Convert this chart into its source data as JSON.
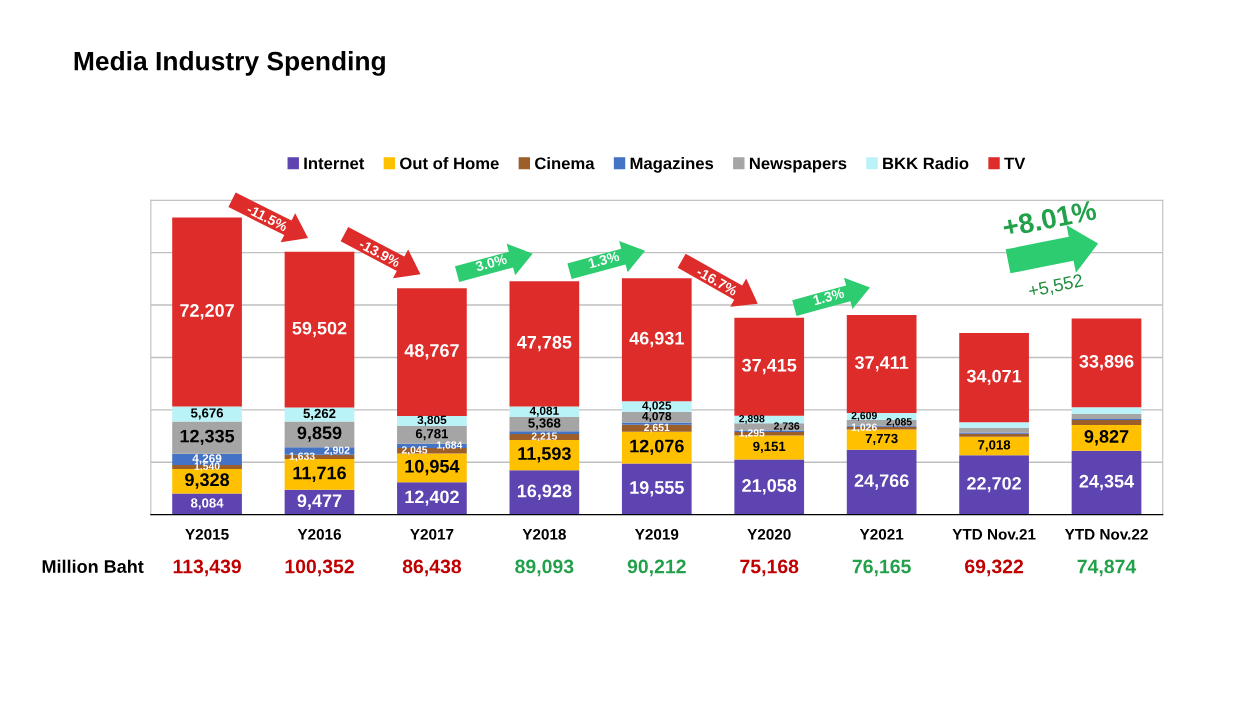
{
  "chart_data": {
    "type": "bar",
    "stacked": true,
    "title": "Media Industry Spending",
    "categories": [
      "Y2015",
      "Y2016",
      "Y2017",
      "Y2018",
      "Y2019",
      "Y2020",
      "Y2021",
      "YTD Nov.21",
      "YTD Nov.22"
    ],
    "series": [
      {
        "name": "Internet",
        "color": "#5e44b1",
        "values": [
          8084,
          9477,
          12402,
          16928,
          19555,
          21058,
          24766,
          22702,
          24354
        ],
        "value_labels": [
          "8,084",
          "9,477",
          "12,402",
          "16,928",
          "19,555",
          "21,058",
          "24,766",
          "22,702",
          "24,354"
        ]
      },
      {
        "name": "Out of Home",
        "color": "#ffc000",
        "values": [
          9328,
          11716,
          10954,
          11593,
          12076,
          9151,
          7773,
          7018,
          9827
        ],
        "value_labels": [
          "9,328",
          "11,716",
          "10,954",
          "11,593",
          "12,076",
          "9,151",
          "7,773",
          "7,018",
          "9,827"
        ]
      },
      {
        "name": "Cinema",
        "color": "#9c5f2a",
        "values": [
          1540,
          1633,
          2045,
          2215,
          2651,
          1295,
          1026,
          1181,
          1900
        ],
        "value_labels": [
          "1,540",
          "1,633",
          "2,045",
          "2,215",
          "2,651",
          "1,295",
          "1,026",
          null,
          null
        ]
      },
      {
        "name": "Magazines",
        "color": "#4472c4",
        "values": [
          4269,
          2902,
          1684,
          1123,
          896,
          615,
          495,
          450,
          400
        ],
        "value_labels": [
          "4,269",
          "2,902",
          "1,684",
          null,
          null,
          null,
          null,
          null,
          null
        ]
      },
      {
        "name": "Newspapers",
        "color": "#a5a5a5",
        "values": [
          12335,
          9859,
          6781,
          5368,
          4078,
          2736,
          2085,
          1800,
          2000
        ],
        "value_labels": [
          "12,335",
          "9,859",
          "6,781",
          "5,368",
          "4,078",
          "2,736",
          "2,085",
          null,
          null
        ]
      },
      {
        "name": "BKK Radio",
        "color": "#b9f3f8",
        "values": [
          5676,
          5262,
          3805,
          4081,
          4025,
          2898,
          2609,
          2100,
          2497
        ],
        "value_labels": [
          "5,676",
          "5,262",
          "3,805",
          "4,081",
          "4,025",
          "2,898",
          "2,609",
          null,
          null
        ]
      },
      {
        "name": "TV",
        "color": "#dd2c2a",
        "values": [
          72207,
          59502,
          48767,
          47785,
          46931,
          37415,
          37411,
          34071,
          33896
        ],
        "value_labels": [
          "72,207",
          "59,502",
          "48,767",
          "47,785",
          "46,931",
          "37,415",
          "37,411",
          "34,071",
          "33,896"
        ]
      }
    ],
    "totals": [
      "113,439",
      "100,352",
      "86,438",
      "89,093",
      "90,212",
      "75,168",
      "76,165",
      "69,322",
      "74,874"
    ],
    "ylim": [
      0,
      120000
    ],
    "tick_labels": "x",
    "grid": "y",
    "legend": "top",
    "annotations": [
      "-11.5%",
      "-13.9%",
      "3.0%",
      "1.3%",
      "-16.7%",
      "1.3%",
      "+8.01%",
      "+5,552",
      "Million Baht"
    ]
  }
}
